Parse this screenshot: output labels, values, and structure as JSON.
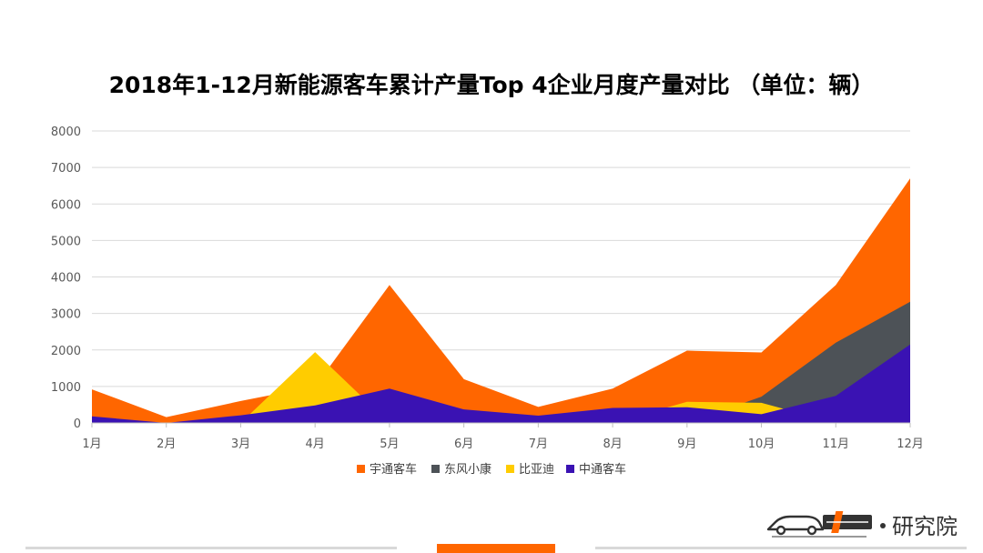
{
  "chart_data": {
    "type": "area",
    "title": "2018年1-12月新能源客车累计产量Top 4企业月度产量对比 （单位：辆）",
    "categories": [
      "1月",
      "2月",
      "3月",
      "4月",
      "5月",
      "6月",
      "7月",
      "8月",
      "9月",
      "10月",
      "11月",
      "12月"
    ],
    "ylim": [
      0,
      8000
    ],
    "yticks": [
      "0",
      "1000",
      "2000",
      "3000",
      "4000",
      "5000",
      "6000",
      "7000",
      "8000"
    ],
    "grid": true,
    "legend_position": "bottom",
    "series": [
      {
        "name": "宇通客车",
        "color": "#ff6600",
        "values": [
          920,
          160,
          600,
          1000,
          3780,
          1200,
          440,
          940,
          1980,
          1930,
          3780,
          6700
        ]
      },
      {
        "name": "东风小康",
        "color": "#4d5257",
        "values": [
          0,
          0,
          0,
          0,
          0,
          0,
          0,
          0,
          0,
          720,
          2200,
          3320
        ]
      },
      {
        "name": "比亚迪",
        "color": "#ffcc00",
        "values": [
          0,
          0,
          0,
          1940,
          0,
          0,
          0,
          0,
          580,
          550,
          0,
          0
        ]
      },
      {
        "name": "中通客车",
        "color": "#3a12b3",
        "values": [
          180,
          0,
          210,
          480,
          940,
          370,
          200,
          410,
          430,
          240,
          740,
          2150
        ]
      }
    ]
  },
  "branding": {
    "logo_text": "研究院",
    "logo_icon": "car-logo-icon"
  }
}
